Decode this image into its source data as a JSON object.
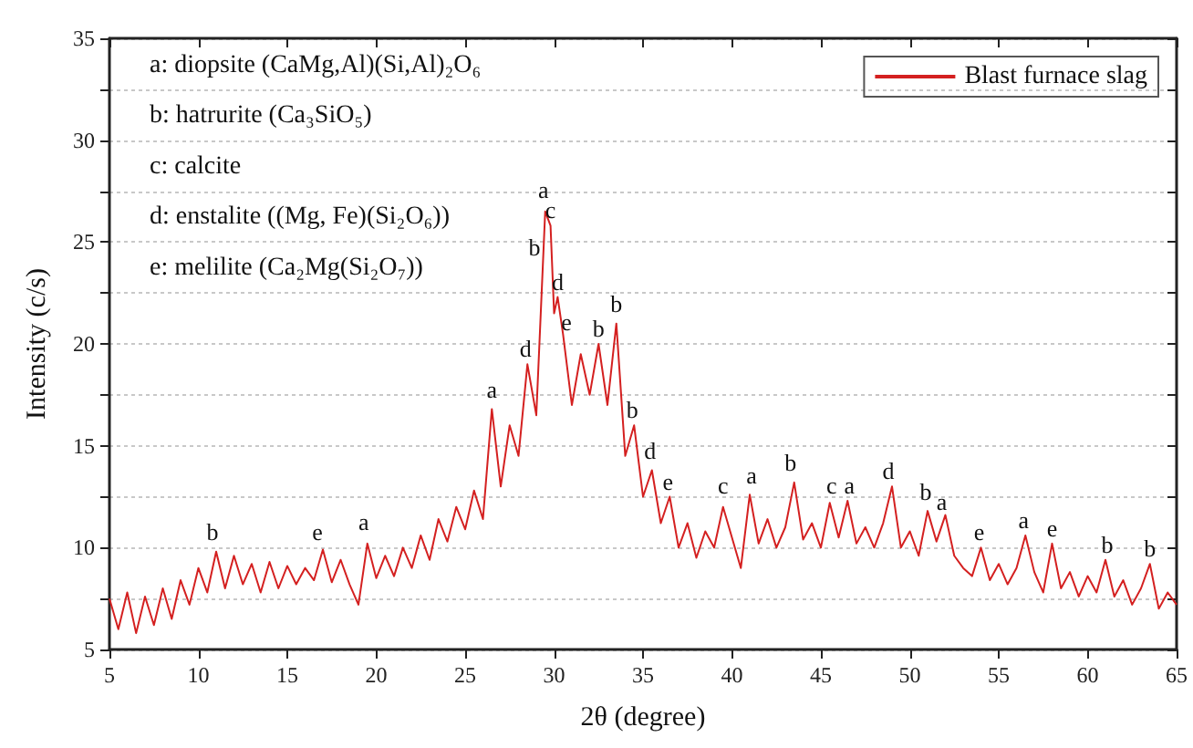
{
  "chart_data": {
    "type": "line",
    "xlabel": "2θ (degree)",
    "ylabel": "Intensity (c/s)",
    "xlim": [
      5,
      65
    ],
    "xticks": [
      5,
      10,
      15,
      20,
      25,
      30,
      35,
      40,
      45,
      50,
      55,
      60,
      65
    ],
    "ylim": [
      5,
      35
    ],
    "yticks": [
      5,
      {
        "value": 7.5,
        "label": null
      },
      10,
      {
        "value": 12.5,
        "label": null
      },
      15,
      {
        "value": 17.5,
        "label": null
      },
      20,
      {
        "value": 22.5,
        "label": null
      },
      25,
      {
        "value": 27.5,
        "label": null
      },
      30,
      {
        "value": 32.5,
        "label": null
      },
      35
    ],
    "grid": "y",
    "legend": "top right",
    "marker": "none",
    "line_style": "solid",
    "series": [
      {
        "name": "Blast furnace slag",
        "color": "#d42020",
        "x": [
          5,
          5.5,
          6,
          6.5,
          7,
          7.5,
          8,
          8.5,
          9,
          9.5,
          10,
          10.5,
          11,
          11.5,
          12,
          12.5,
          13,
          13.5,
          14,
          14.5,
          15,
          15.5,
          16,
          16.5,
          17,
          17.5,
          18,
          18.5,
          19,
          19.5,
          20,
          20.5,
          21,
          21.5,
          22,
          22.5,
          23,
          23.5,
          24,
          24.5,
          25,
          25.5,
          26,
          26.5,
          27,
          27.5,
          28,
          28.5,
          29,
          29.5,
          29.8,
          30,
          30.2,
          30.5,
          31,
          31.5,
          32,
          32.5,
          33,
          33.5,
          34,
          34.5,
          35,
          35.5,
          36,
          36.5,
          37,
          37.5,
          38,
          38.5,
          39,
          39.5,
          40,
          40.5,
          41,
          41.5,
          42,
          42.5,
          43,
          43.5,
          44,
          44.5,
          45,
          45.5,
          46,
          46.5,
          47,
          47.5,
          48,
          48.5,
          49,
          49.5,
          50,
          50.5,
          51,
          51.5,
          52,
          52.5,
          53,
          53.5,
          54,
          54.5,
          55,
          55.5,
          56,
          56.5,
          57,
          57.5,
          58,
          58.5,
          59,
          59.5,
          60,
          60.5,
          61,
          61.5,
          62,
          62.5,
          63,
          63.5,
          64,
          64.5,
          65
        ],
        "values": [
          7.5,
          6.0,
          7.8,
          5.8,
          7.6,
          6.2,
          8.0,
          6.5,
          8.4,
          7.2,
          9.0,
          7.8,
          9.8,
          8.0,
          9.6,
          8.2,
          9.2,
          7.8,
          9.3,
          8.0,
          9.1,
          8.2,
          9.0,
          8.4,
          9.9,
          8.3,
          9.4,
          8.2,
          7.2,
          10.2,
          8.5,
          9.6,
          8.6,
          10.0,
          9.0,
          10.6,
          9.4,
          11.4,
          10.3,
          12.0,
          10.9,
          12.8,
          11.4,
          16.8,
          13.0,
          16.0,
          14.5,
          19.0,
          16.5,
          26.5,
          25.8,
          21.5,
          22.3,
          20.5,
          17.0,
          19.5,
          17.5,
          20.0,
          17.0,
          21.0,
          14.5,
          16.0,
          12.5,
          13.8,
          11.2,
          12.5,
          10.0,
          11.2,
          9.5,
          10.8,
          10.0,
          12.0,
          10.5,
          9.0,
          12.6,
          10.2,
          11.4,
          10.0,
          11.0,
          13.2,
          10.4,
          11.2,
          10.0,
          12.2,
          10.5,
          12.3,
          10.2,
          11.0,
          10.0,
          11.2,
          13.0,
          10.0,
          10.8,
          9.6,
          11.8,
          10.3,
          11.6,
          9.6,
          9.0,
          8.6,
          10.0,
          8.4,
          9.2,
          8.2,
          9.0,
          10.6,
          8.8,
          7.8,
          10.2,
          8.0,
          8.8,
          7.6,
          8.6,
          7.8,
          9.4,
          7.6,
          8.4,
          7.2,
          8.0,
          9.2,
          7.0,
          7.8,
          7.2
        ]
      }
    ],
    "annotations": [
      "a: diopsite (CaMg,Al)(Si,Al)₂O₆",
      "b: hatrurite (Ca₃SiO₅)",
      "c: calcite",
      "d: enstalite ((Mg, Fe)(Si₂O₆))",
      "e: melilite (Ca₂Mg(Si₂O₇))",
      {
        "text": "b",
        "x": 10.8,
        "y": 10
      },
      {
        "text": "e",
        "x": 16.7,
        "y": 10
      },
      {
        "text": "a",
        "x": 19.3,
        "y": 10.5
      },
      {
        "text": "a",
        "x": 26.5,
        "y": 17
      },
      {
        "text": "d",
        "x": 28.4,
        "y": 19
      },
      {
        "text": "b",
        "x": 28.9,
        "y": 24
      },
      {
        "text": "a",
        "x": 29.4,
        "y": 26.8
      },
      {
        "text": "c",
        "x": 29.8,
        "y": 25.8
      },
      {
        "text": "d",
        "x": 30.2,
        "y": 22.3
      },
      {
        "text": "e",
        "x": 30.7,
        "y": 20.3
      },
      {
        "text": "b",
        "x": 32.5,
        "y": 20
      },
      {
        "text": "b",
        "x": 33.5,
        "y": 21.2
      },
      {
        "text": "b",
        "x": 34.4,
        "y": 16
      },
      {
        "text": "d",
        "x": 35.4,
        "y": 14
      },
      {
        "text": "e",
        "x": 36.4,
        "y": 12.5
      },
      {
        "text": "c",
        "x": 39.5,
        "y": 12.3
      },
      {
        "text": "a",
        "x": 41.1,
        "y": 12.8
      },
      {
        "text": "b",
        "x": 43.3,
        "y": 13.4
      },
      {
        "text": "c",
        "x": 45.6,
        "y": 12.3
      },
      {
        "text": "a",
        "x": 46.6,
        "y": 12.3
      },
      {
        "text": "d",
        "x": 48.8,
        "y": 13
      },
      {
        "text": "b",
        "x": 50.9,
        "y": 12
      },
      {
        "text": "a",
        "x": 51.8,
        "y": 11.5
      },
      {
        "text": "e",
        "x": 53.9,
        "y": 10
      },
      {
        "text": "a",
        "x": 56.4,
        "y": 10.6
      },
      {
        "text": "e",
        "x": 58,
        "y": 10.2
      },
      {
        "text": "b",
        "x": 61.1,
        "y": 9.4
      },
      {
        "text": "b",
        "x": 63.5,
        "y": 9.2
      }
    ]
  }
}
